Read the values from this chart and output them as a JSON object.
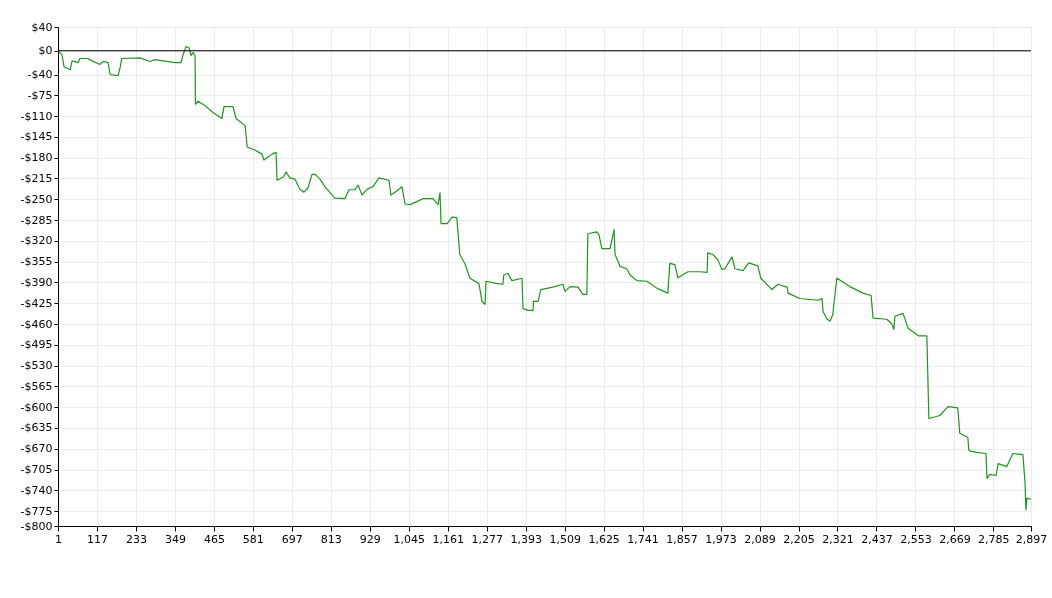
{
  "chart_data": {
    "type": "line",
    "x": [
      1,
      13,
      19,
      37,
      43,
      61,
      66,
      90,
      102,
      126,
      135,
      150,
      156,
      180,
      186,
      191,
      245,
      275,
      290,
      349,
      367,
      373,
      382,
      391,
      397,
      403,
      409,
      410,
      418,
      438,
      462,
      489,
      495,
      522,
      531,
      558,
      564,
      587,
      608,
      614,
      626,
      638,
      650,
      653,
      671,
      680,
      691,
      706,
      721,
      733,
      745,
      757,
      766,
      781,
      796,
      825,
      855,
      867,
      885,
      894,
      906,
      921,
      938,
      956,
      986,
      992,
      1004,
      1025,
      1034,
      1049,
      1069,
      1087,
      1117,
      1132,
      1138,
      1141,
      1159,
      1174,
      1188,
      1197,
      1212,
      1227,
      1254,
      1263,
      1272,
      1275,
      1308,
      1325,
      1328,
      1340,
      1352,
      1382,
      1385,
      1400,
      1415,
      1416,
      1430,
      1438,
      1474,
      1504,
      1510,
      1525,
      1549,
      1563,
      1575,
      1578,
      1605,
      1611,
      1620,
      1644,
      1656,
      1659,
      1674,
      1694,
      1703,
      1724,
      1754,
      1784,
      1816,
      1822,
      1837,
      1846,
      1876,
      1912,
      1933,
      1935,
      1950,
      1965,
      1977,
      1986,
      2007,
      2016,
      2040,
      2057,
      2084,
      2093,
      2126,
      2144,
      2171,
      2174,
      2209,
      2263,
      2275,
      2278,
      2290,
      2299,
      2307,
      2319,
      2334,
      2358,
      2397,
      2421,
      2427,
      2468,
      2483,
      2489,
      2492,
      2516,
      2531,
      2563,
      2587,
      2593,
      2626,
      2650,
      2679,
      2685,
      2709,
      2712,
      2736,
      2763,
      2766,
      2775,
      2793,
      2799,
      2825,
      2843,
      2873,
      2879,
      2882,
      2885,
      2897
    ],
    "series": [
      {
        "color": "#1e961e",
        "values": [
          0,
          -7,
          -27,
          -32,
          -17,
          -20,
          -13,
          -13,
          -17,
          -23,
          -18,
          -20,
          -40,
          -42,
          -28,
          -13,
          -12,
          -18,
          -15,
          -20,
          -20,
          -7,
          7,
          5,
          -8,
          -3,
          -8,
          -90,
          -85,
          -92,
          -104,
          -114,
          -94,
          -94,
          -114,
          -126,
          -162,
          -167,
          -174,
          -184,
          -179,
          -174,
          -171,
          -218,
          -213,
          -204,
          -214,
          -216,
          -233,
          -238,
          -231,
          -208,
          -208,
          -216,
          -229,
          -248,
          -249,
          -234,
          -234,
          -226,
          -243,
          -233,
          -229,
          -214,
          -218,
          -243,
          -238,
          -229,
          -258,
          -259,
          -254,
          -249,
          -249,
          -259,
          -239,
          -291,
          -291,
          -280,
          -281,
          -343,
          -358,
          -383,
          -392,
          -422,
          -427,
          -388,
          -392,
          -393,
          -377,
          -375,
          -387,
          -383,
          -434,
          -437,
          -437,
          -422,
          -422,
          -402,
          -398,
          -393,
          -405,
          -397,
          -398,
          -410,
          -410,
          -308,
          -305,
          -310,
          -333,
          -333,
          -301,
          -343,
          -363,
          -367,
          -377,
          -387,
          -388,
          -400,
          -408,
          -358,
          -360,
          -382,
          -372,
          -372,
          -373,
          -340,
          -343,
          -352,
          -368,
          -367,
          -347,
          -367,
          -370,
          -357,
          -362,
          -383,
          -402,
          -393,
          -398,
          -408,
          -417,
          -420,
          -417,
          -439,
          -452,
          -455,
          -444,
          -383,
          -388,
          -397,
          -408,
          -412,
          -450,
          -452,
          -460,
          -469,
          -447,
          -442,
          -467,
          -480,
          -480,
          -619,
          -614,
          -599,
          -601,
          -644,
          -651,
          -673,
          -676,
          -678,
          -720,
          -713,
          -715,
          -695,
          -700,
          -678,
          -680,
          -726,
          -773,
          -753,
          -755
        ]
      }
    ],
    "xlim": [
      1,
      2897
    ],
    "xticks": [
      1,
      117,
      233,
      349,
      465,
      581,
      697,
      813,
      929,
      {
        "value": 1045,
        "label": "1,045"
      },
      {
        "value": 1161,
        "label": "1,161"
      },
      {
        "value": 1277,
        "label": "1,277"
      },
      {
        "value": 1393,
        "label": "1,393"
      },
      {
        "value": 1509,
        "label": "1,509"
      },
      {
        "value": 1625,
        "label": "1,625"
      },
      {
        "value": 1741,
        "label": "1,741"
      },
      {
        "value": 1857,
        "label": "1,857"
      },
      {
        "value": 1973,
        "label": "1,973"
      },
      {
        "value": 2089,
        "label": "2,089"
      },
      {
        "value": 2205,
        "label": "2,205"
      },
      {
        "value": 2321,
        "label": "2,321"
      },
      {
        "value": 2437,
        "label": "2,437"
      },
      {
        "value": 2553,
        "label": "2,553"
      },
      {
        "value": 2669,
        "label": "2,669"
      },
      {
        "value": 2785,
        "label": "2,785"
      },
      {
        "value": 2897,
        "label": "2,897"
      }
    ],
    "ylim": [
      -800,
      40
    ],
    "yticks": [
      {
        "value": 40,
        "label": "$40"
      },
      {
        "value": 0,
        "label": "$0"
      },
      {
        "value": -40,
        "label": "-$40"
      },
      {
        "value": -75,
        "label": "-$75"
      },
      {
        "value": -110,
        "label": "-$110"
      },
      {
        "value": -145,
        "label": "-$145"
      },
      {
        "value": -180,
        "label": "-$180"
      },
      {
        "value": -215,
        "label": "-$215"
      },
      {
        "value": -250,
        "label": "-$250"
      },
      {
        "value": -285,
        "label": "-$285"
      },
      {
        "value": -320,
        "label": "-$320"
      },
      {
        "value": -355,
        "label": "-$355"
      },
      {
        "value": -390,
        "label": "-$390"
      },
      {
        "value": -425,
        "label": "-$425"
      },
      {
        "value": -460,
        "label": "-$460"
      },
      {
        "value": -495,
        "label": "-$495"
      },
      {
        "value": -530,
        "label": "-$530"
      },
      {
        "value": -565,
        "label": "-$565"
      },
      {
        "value": -600,
        "label": "-$600"
      },
      {
        "value": -635,
        "label": "-$635"
      },
      {
        "value": -670,
        "label": "-$670"
      },
      {
        "value": -705,
        "label": "-$705"
      },
      {
        "value": -740,
        "label": "-$740"
      },
      {
        "value": -775,
        "label": "-$775"
      },
      {
        "value": -800,
        "label": "-$800"
      }
    ],
    "ref_lines": [
      {
        "axis": "y",
        "value": 0,
        "color": "#000000"
      }
    ],
    "grid": true,
    "marker": "none",
    "line_style": "solid"
  }
}
